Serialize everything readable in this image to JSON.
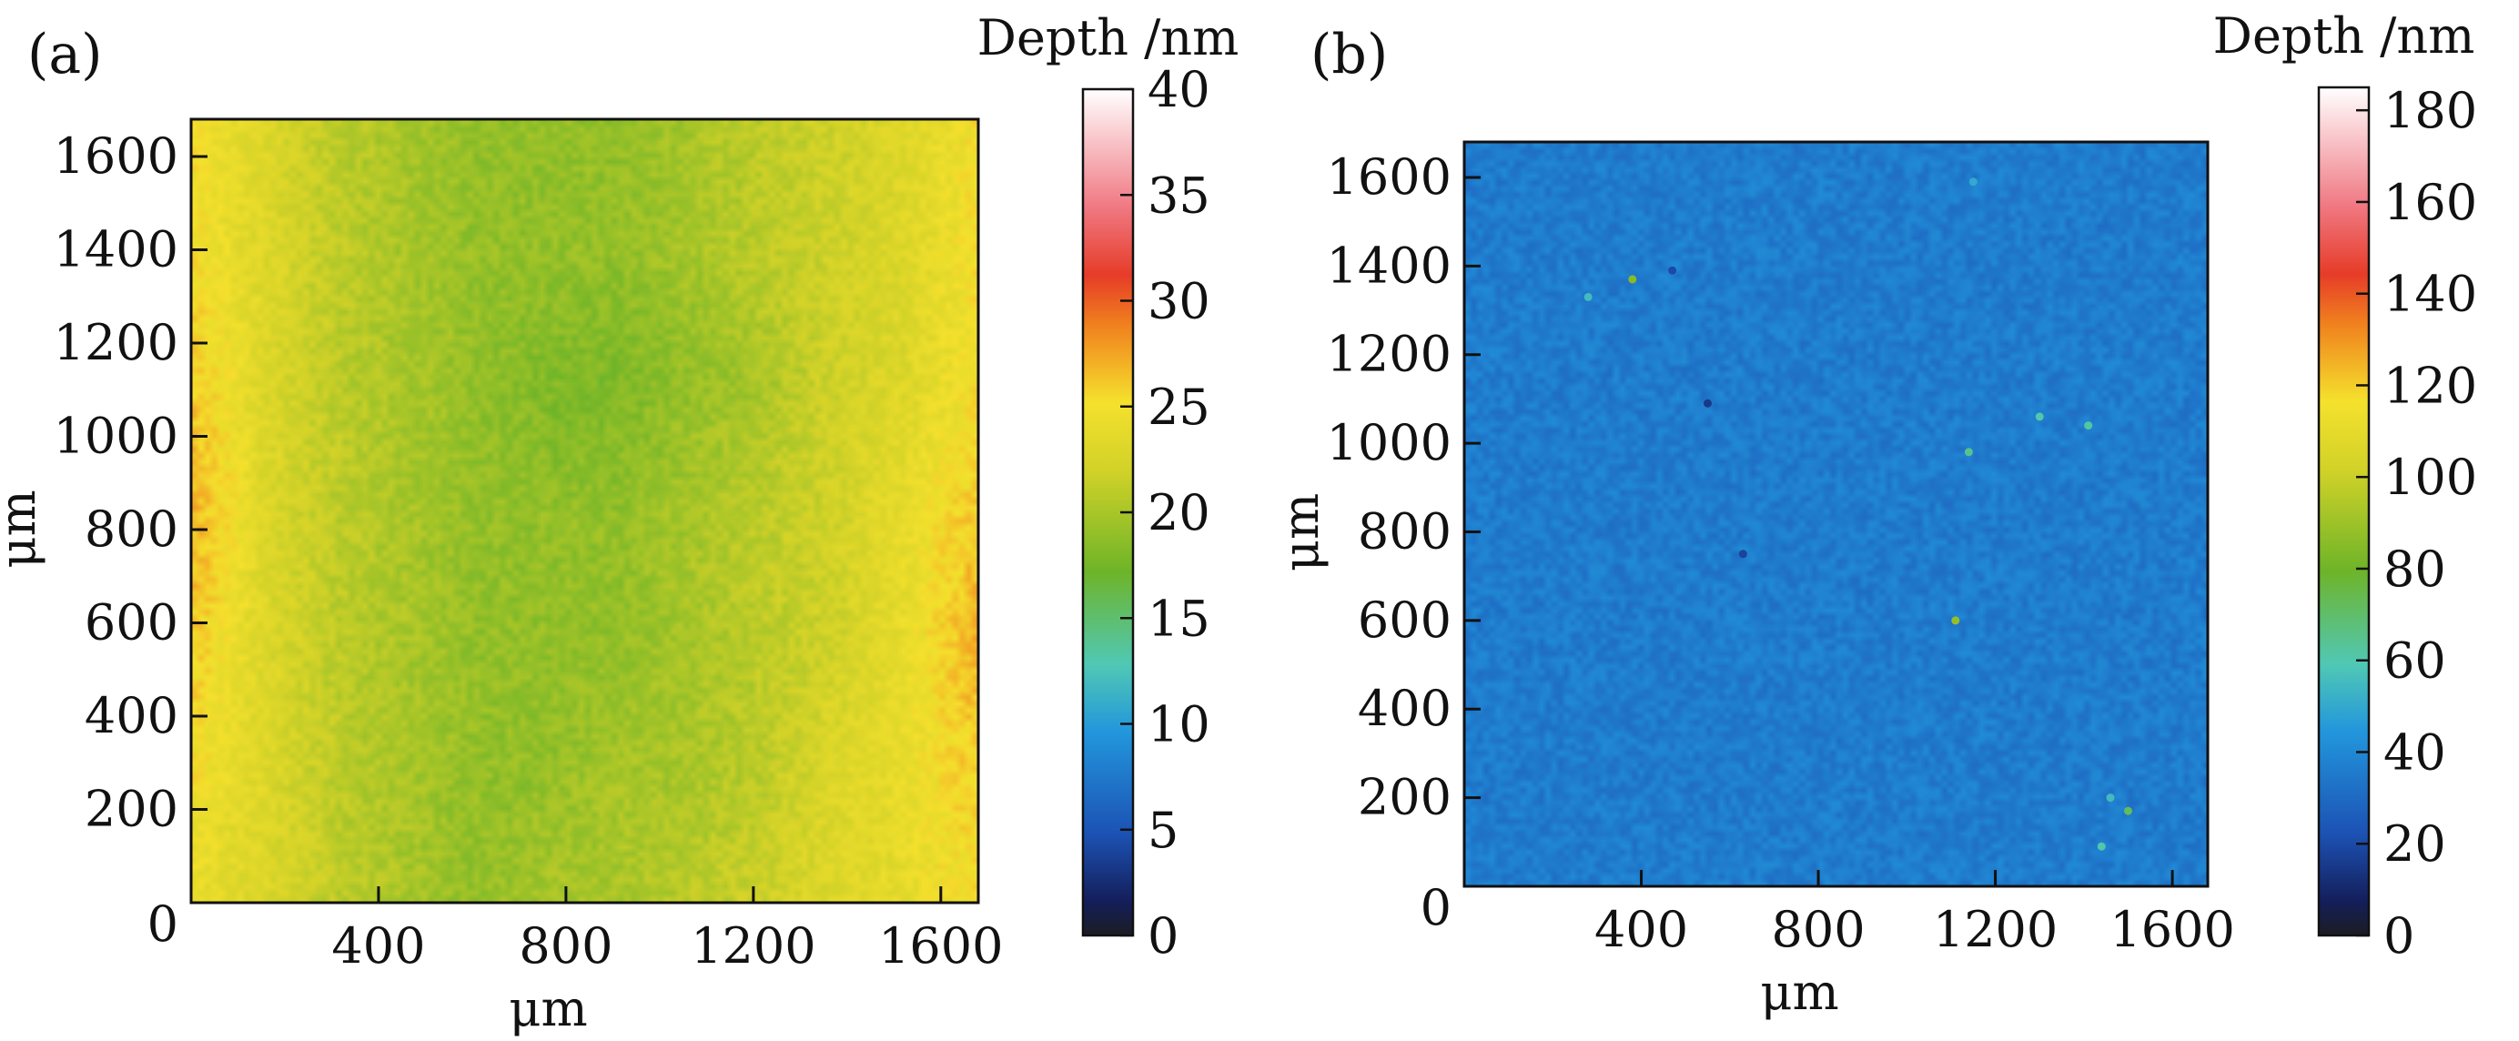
{
  "chart_data": [
    {
      "panel_label": "(a)",
      "type": "heatmap",
      "xlabel": "μm",
      "ylabel": "μm",
      "x_ticks": [
        400,
        800,
        1200,
        1600
      ],
      "y_ticks": [
        0,
        200,
        400,
        600,
        800,
        1000,
        1200,
        1400,
        1600
      ],
      "xlim": [
        0,
        1680
      ],
      "ylim": [
        0,
        1680
      ],
      "colorbar": {
        "label": "Depth /nm",
        "range": [
          0,
          40
        ],
        "ticks": [
          0,
          5,
          10,
          15,
          20,
          25,
          30,
          35,
          40
        ]
      },
      "field": {
        "description_values": "approximate depth (nm) over a coarse grid; rows listed from top (y=1680) to bottom (y=0), columns left (x=0) to right (x=1680)",
        "grid": [
          [
            25,
            23,
            21,
            20,
            19,
            19,
            19,
            20,
            21,
            22,
            23,
            25
          ],
          [
            25,
            23,
            21,
            20,
            19,
            19,
            19,
            20,
            21,
            22,
            23,
            25
          ],
          [
            26,
            23,
            21,
            20,
            19,
            18,
            18,
            19,
            20,
            22,
            23,
            25
          ],
          [
            27,
            23,
            21,
            20,
            19,
            19,
            19,
            20,
            21,
            22,
            24,
            26
          ],
          [
            26,
            23,
            21,
            20,
            19,
            19,
            19,
            20,
            21,
            22,
            24,
            27
          ],
          [
            25,
            23,
            21,
            20,
            19,
            19,
            20,
            20,
            21,
            23,
            24,
            26
          ],
          [
            24,
            23,
            21,
            20,
            19,
            20,
            20,
            21,
            22,
            23,
            24,
            25
          ]
        ]
      }
    },
    {
      "panel_label": "(b)",
      "type": "heatmap",
      "xlabel": "μm",
      "ylabel": "μm",
      "x_ticks": [
        400,
        800,
        1200,
        1600
      ],
      "y_ticks": [
        0,
        200,
        400,
        600,
        800,
        1000,
        1200,
        1400,
        1600
      ],
      "xlim": [
        0,
        1680
      ],
      "ylim": [
        0,
        1680
      ],
      "colorbar": {
        "label": "Depth /nm",
        "range": [
          0,
          185
        ],
        "ticks": [
          0,
          20,
          40,
          60,
          80,
          100,
          120,
          140,
          160,
          180
        ]
      },
      "field": {
        "base_depth": 36,
        "spots": [
          {
            "x": 380,
            "y": 1370,
            "depth": 85
          },
          {
            "x": 280,
            "y": 1330,
            "depth": 55
          },
          {
            "x": 470,
            "y": 1390,
            "depth": 20
          },
          {
            "x": 550,
            "y": 1090,
            "depth": 15
          },
          {
            "x": 630,
            "y": 750,
            "depth": 18
          },
          {
            "x": 1300,
            "y": 1060,
            "depth": 60
          },
          {
            "x": 1410,
            "y": 1040,
            "depth": 62
          },
          {
            "x": 1140,
            "y": 980,
            "depth": 65
          },
          {
            "x": 1110,
            "y": 600,
            "depth": 88
          },
          {
            "x": 1500,
            "y": 170,
            "depth": 72
          },
          {
            "x": 1460,
            "y": 200,
            "depth": 55
          },
          {
            "x": 1440,
            "y": 90,
            "depth": 60
          },
          {
            "x": 1150,
            "y": 1590,
            "depth": 50
          }
        ]
      }
    }
  ]
}
